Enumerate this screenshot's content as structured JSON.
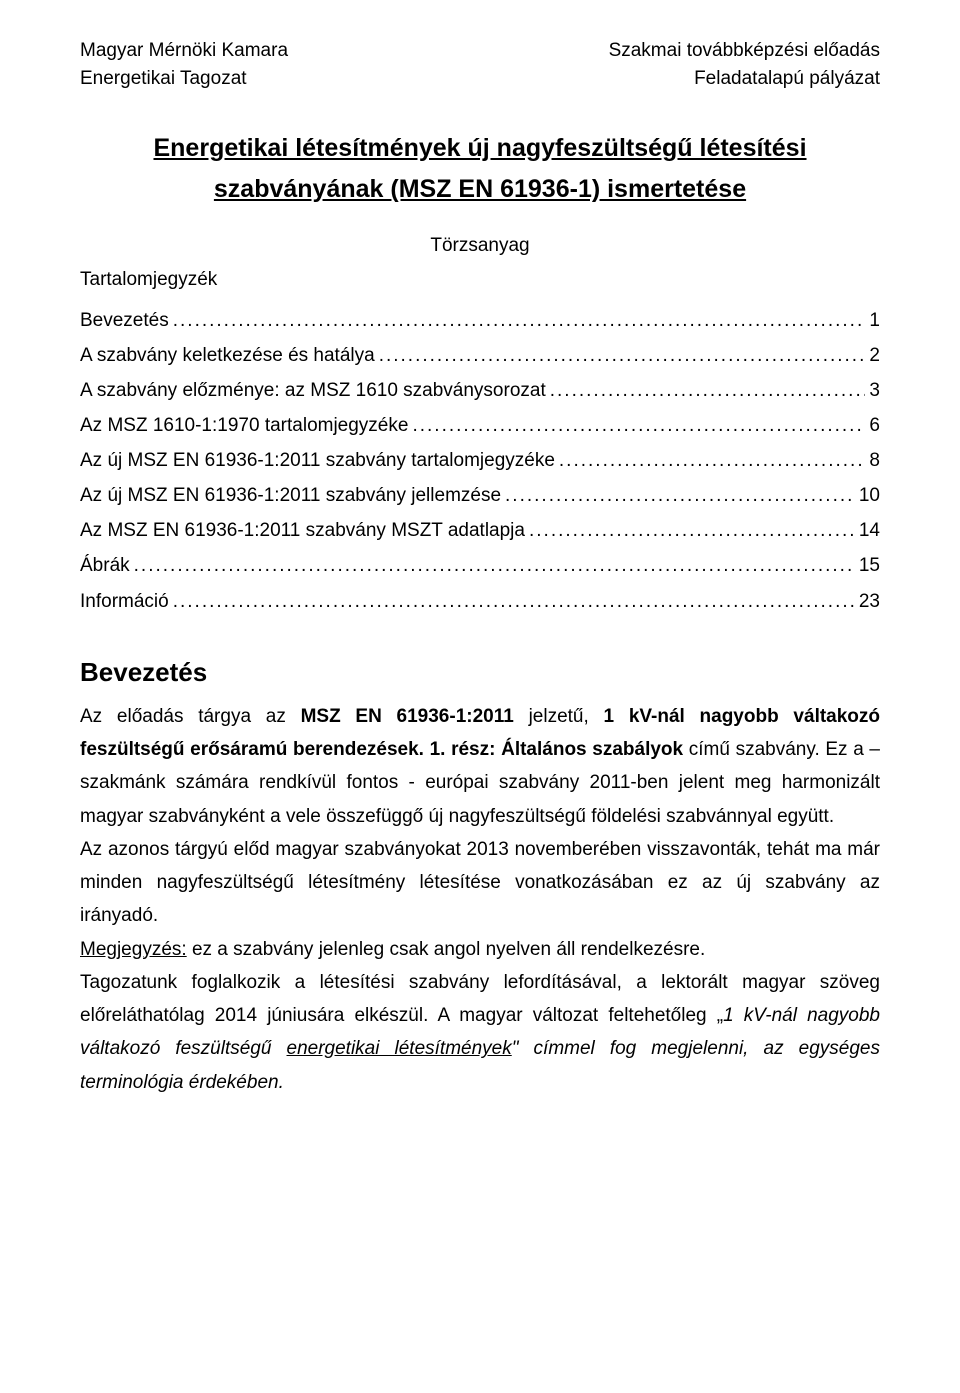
{
  "header": {
    "line1_left": "Magyar Mérnöki Kamara",
    "line1_right": "Szakmai továbbképzési előadás",
    "line2_left": "Energetikai Tagozat",
    "line2_right": "Feladatalapú pályázat"
  },
  "title": {
    "line1": "Energetikai létesítmények új nagyfeszültségű létesítési",
    "line2": "szabványának (MSZ EN 61936-1) ismertetése"
  },
  "subtitle": "Törzsanyag",
  "toc_heading": "Tartalomjegyzék",
  "toc": [
    {
      "label": "Bevezetés",
      "page": "1"
    },
    {
      "label": "A szabvány keletkezése és hatálya",
      "page": "2"
    },
    {
      "label": "A szabvány előzménye: az MSZ 1610 szabványsorozat",
      "page": "3"
    },
    {
      "label": "Az MSZ 1610-1:1970 tartalomjegyzéke",
      "page": "6"
    },
    {
      "label": "Az új MSZ EN 61936-1:2011 szabvány tartalomjegyzéke",
      "page": "8"
    },
    {
      "label": "Az új MSZ EN 61936-1:2011 szabvány jellemzése",
      "page": "10"
    },
    {
      "label": "Az MSZ EN 61936-1:2011 szabvány MSZT adatlapja",
      "page": "14"
    },
    {
      "label": "Ábrák",
      "page": "15"
    },
    {
      "label": "Információ",
      "page": "23"
    }
  ],
  "section": {
    "title": "Bevezetés",
    "p1_a": "Az előadás tárgya az ",
    "p1_b": "MSZ EN 61936-1:2011",
    "p1_c": " jelzetű, ",
    "p1_d": "1 kV-nál nagyobb váltakozó feszültségű erősáramú berendezések. 1. rész: Általános szabályok",
    "p1_e": " című szabvány. Ez a – szakmánk számára rendkívül fontos - európai szabvány 2011-ben jelent meg harmonizált magyar szabványként a vele összefüggő új nagyfeszültségű földelési szabvánnyal együtt.",
    "p2": "Az azonos tárgyú előd magyar szabványokat 2013 novemberében visszavonták, tehát ma már minden nagyfeszültségű létesítmény létesítése vonatkozásában ez az új szabvány az irányadó.",
    "p3_a": "Megjegyzés:",
    "p3_b": " ez a szabvány jelenleg csak angol nyelven áll rendelkezésre.",
    "p4_a": "Tagozatunk foglalkozik a létesítési szabvány lefordításával, a lektorált magyar szöveg előreláthatólag 2014 júniusára elkészül. A magyar változat feltehetőleg „",
    "p4_b": "1 kV-nál nagyobb váltakozó feszültségű ",
    "p4_c": "energetikai létesítmények",
    "p4_d": "\" címmel fog megjelenni, az egységes terminológia érdekében."
  }
}
